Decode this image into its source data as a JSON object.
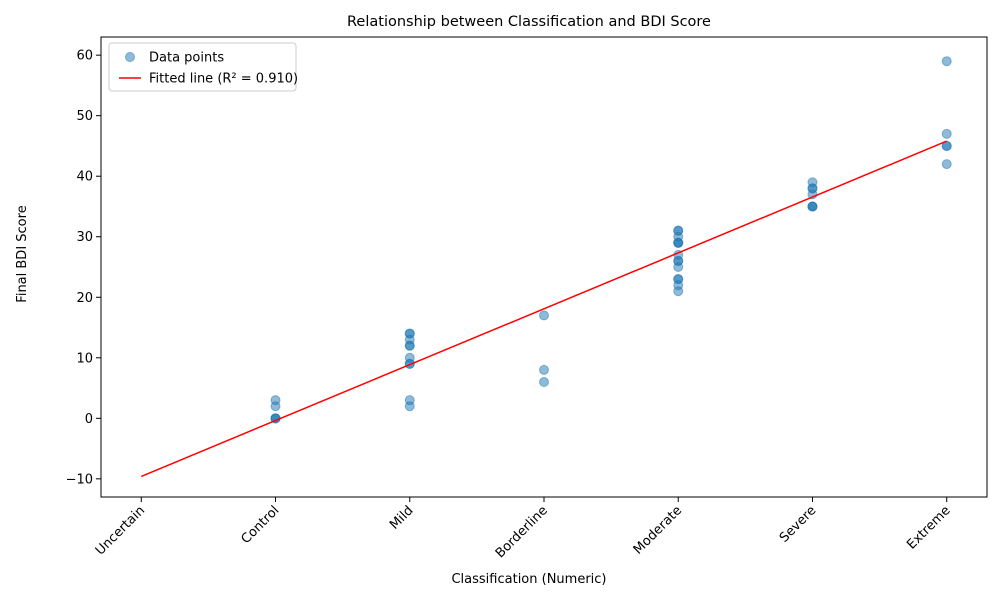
{
  "chart_data": {
    "type": "scatter",
    "title": "Relationship between Classification and BDI Score",
    "xlabel": "Classification (Numeric)",
    "ylabel": "Final BDI Score",
    "x_tick_labels": [
      "Uncertain",
      "Control",
      "Mild",
      "Borderline",
      "Moderate",
      "Severe",
      "Extreme"
    ],
    "x_ticks": [
      0,
      1,
      2,
      3,
      4,
      5,
      6
    ],
    "xlim": [
      -0.3,
      6.3
    ],
    "y_ticks": [
      -10,
      0,
      10,
      20,
      30,
      40,
      50,
      60
    ],
    "y_tick_labels": [
      "−10",
      "0",
      "10",
      "20",
      "30",
      "40",
      "50",
      "60"
    ],
    "ylim": [
      -13,
      63
    ],
    "grid": false,
    "legend_position": "top-left",
    "series": [
      {
        "name": "Data points",
        "kind": "scatter",
        "color": "#1f77b4",
        "points": [
          [
            1,
            3
          ],
          [
            1,
            2
          ],
          [
            1,
            0
          ],
          [
            1,
            0
          ],
          [
            1,
            0
          ],
          [
            2,
            14
          ],
          [
            2,
            14
          ],
          [
            2,
            13
          ],
          [
            2,
            12
          ],
          [
            2,
            12
          ],
          [
            2,
            10
          ],
          [
            2,
            9
          ],
          [
            2,
            9
          ],
          [
            2,
            3
          ],
          [
            2,
            2
          ],
          [
            3,
            17
          ],
          [
            3,
            8
          ],
          [
            3,
            6
          ],
          [
            4,
            31
          ],
          [
            4,
            31
          ],
          [
            4,
            30
          ],
          [
            4,
            29
          ],
          [
            4,
            29
          ],
          [
            4,
            29
          ],
          [
            4,
            27
          ],
          [
            4,
            26
          ],
          [
            4,
            26
          ],
          [
            4,
            25
          ],
          [
            4,
            23
          ],
          [
            4,
            23
          ],
          [
            4,
            22
          ],
          [
            4,
            21
          ],
          [
            5,
            39
          ],
          [
            5,
            38
          ],
          [
            5,
            38
          ],
          [
            5,
            37
          ],
          [
            5,
            35
          ],
          [
            5,
            35
          ],
          [
            5,
            35
          ],
          [
            6,
            59
          ],
          [
            6,
            47
          ],
          [
            6,
            45
          ],
          [
            6,
            45
          ],
          [
            6,
            42
          ]
        ]
      },
      {
        "name": "Fitted line (R² = 0.910)",
        "kind": "line",
        "color": "#ff0000",
        "points": [
          [
            0,
            -9.6
          ],
          [
            6,
            45.8
          ]
        ]
      }
    ]
  }
}
